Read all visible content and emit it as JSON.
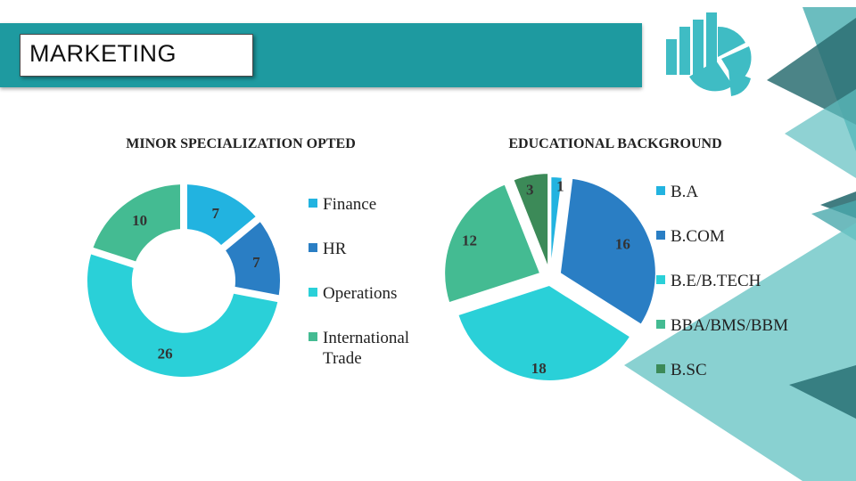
{
  "slide": {
    "title": "MARKETING",
    "icon": "pie-chart-bar-icon",
    "accent": "#1e9aa0"
  },
  "chart_data": [
    {
      "type": "pie",
      "variant": "donut",
      "title": "MINOR SPECIALIZATION OPTED",
      "categories": [
        "Finance",
        "HR",
        "Operations",
        "International Trade"
      ],
      "values": [
        7,
        7,
        26,
        10
      ],
      "colors": [
        "#22b3e0",
        "#2a7ec4",
        "#2ad0d8",
        "#44bb92"
      ],
      "legend": "right"
    },
    {
      "type": "pie",
      "title": "EDUCATIONAL BACKGROUND",
      "categories": [
        "B.A",
        "B.COM",
        "B.E/B.TECH",
        "BBA/BMS/BBM",
        "B.SC"
      ],
      "values": [
        1,
        16,
        18,
        12,
        3
      ],
      "colors": [
        "#22b3e0",
        "#2a7ec4",
        "#2ad0d8",
        "#44bb92",
        "#3c8a58"
      ],
      "legend": "right"
    }
  ]
}
